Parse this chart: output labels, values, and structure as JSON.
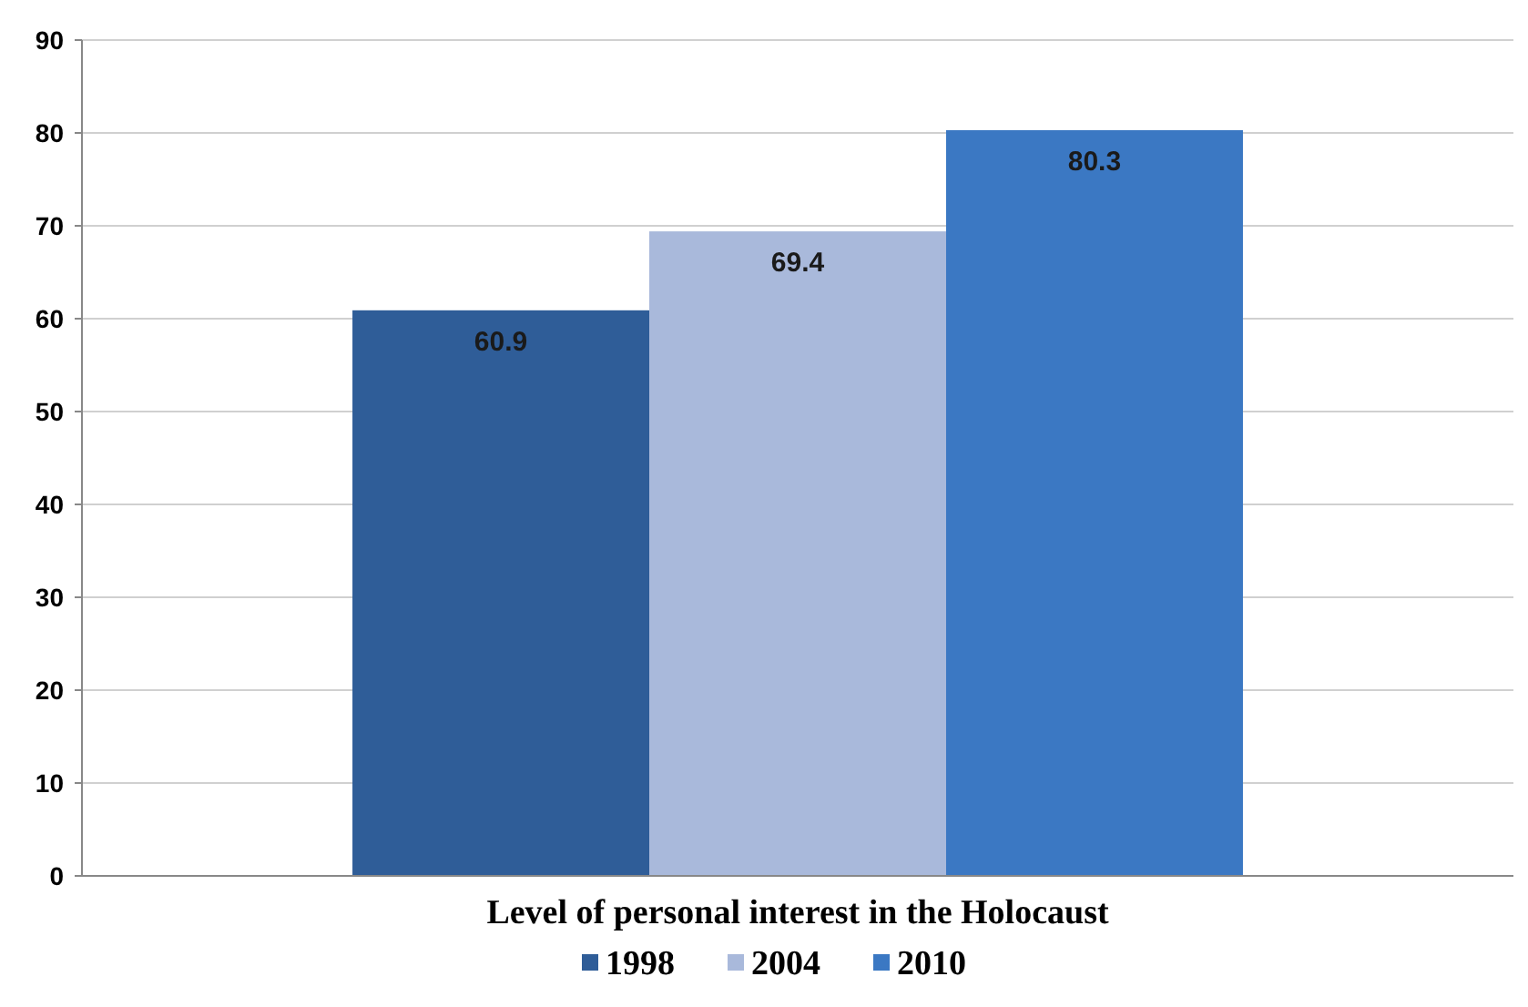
{
  "chart_data": {
    "type": "bar",
    "categories": [
      "Level of personal interest in the Holocaust"
    ],
    "series": [
      {
        "name": "1998",
        "color": "#2f5d98",
        "values": [
          60.9
        ]
      },
      {
        "name": "2004",
        "color": "#a9b9db",
        "values": [
          69.4
        ]
      },
      {
        "name": "2010",
        "color": "#3b78c3",
        "values": [
          80.3
        ]
      }
    ],
    "ylim": [
      0,
      90
    ],
    "yticks": [
      0,
      10,
      20,
      30,
      40,
      50,
      60,
      70,
      80,
      90
    ],
    "grid": "y",
    "legend": "bottom",
    "data_labels": true
  }
}
